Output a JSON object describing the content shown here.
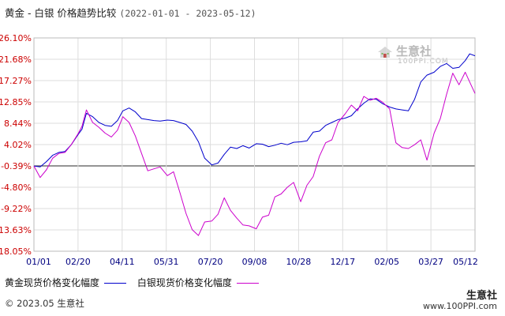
{
  "title": {
    "main": "黄金 - 白银 价格趋势比较",
    "range": "(2022-01-01 - 2023-05-12)"
  },
  "watermark": {
    "brand": "生意社",
    "url": "100PPI.COM"
  },
  "legend": {
    "gold": {
      "label": "黄金现货价格变化幅度",
      "color": "#0000cc"
    },
    "silver": {
      "label": "白银现货价格变化幅度",
      "color": "#cc00cc"
    }
  },
  "footer": {
    "copyright": "© 2023.05 生意社",
    "brand": "生意社",
    "url": "www.100PPI.com"
  },
  "colors": {
    "ytick": "#cc0000",
    "xtick": "#000080",
    "grid": "#dddddd",
    "zero": "#555555"
  },
  "chart_data": {
    "type": "line",
    "title": "黄金 - 白银 价格趋势比较 (2022-01-01 - 2023-05-12)",
    "xlabel": "",
    "ylabel": "",
    "x_ticks": [
      "01/01",
      "02/20",
      "04/11",
      "05/31",
      "07/20",
      "09/08",
      "10/28",
      "12/17",
      "02/05",
      "03/27",
      "05/12"
    ],
    "y_ticks": [
      "26.10%",
      "21.68%",
      "17.27%",
      "12.85%",
      "8.44%",
      "4.02%",
      "-0.39%",
      "-4.80%",
      "-9.22%",
      "-13.63%",
      "-18.05%"
    ],
    "y_tick_values": [
      26.1,
      21.68,
      17.27,
      12.85,
      8.44,
      4.02,
      -0.39,
      -4.8,
      -9.22,
      -13.63,
      -18.05
    ],
    "ylim": [
      -18.05,
      26.1
    ],
    "x_range": [
      "2022-01-01",
      "2023-05-12"
    ],
    "grid": true,
    "series": [
      {
        "name": "黄金现货价格变化幅度",
        "x": [
          "2022-01-01",
          "2022-01-08",
          "2022-01-15",
          "2022-01-22",
          "2022-01-29",
          "2022-02-05",
          "2022-02-12",
          "2022-02-20",
          "2022-02-24",
          "2022-03-01",
          "2022-03-08",
          "2022-03-15",
          "2022-03-22",
          "2022-03-29",
          "2022-04-05",
          "2022-04-11",
          "2022-04-18",
          "2022-04-25",
          "2022-05-02",
          "2022-05-09",
          "2022-05-16",
          "2022-05-23",
          "2022-05-31",
          "2022-06-07",
          "2022-06-14",
          "2022-06-21",
          "2022-06-28",
          "2022-07-05",
          "2022-07-12",
          "2022-07-20",
          "2022-07-27",
          "2022-08-03",
          "2022-08-10",
          "2022-08-17",
          "2022-08-24",
          "2022-08-31",
          "2022-09-08",
          "2022-09-15",
          "2022-09-22",
          "2022-09-29",
          "2022-10-06",
          "2022-10-13",
          "2022-10-20",
          "2022-10-28",
          "2022-11-04",
          "2022-11-11",
          "2022-11-18",
          "2022-11-25",
          "2022-12-02",
          "2022-12-09",
          "2022-12-17",
          "2022-12-24",
          "2022-12-31",
          "2023-01-07",
          "2023-01-14",
          "2023-01-21",
          "2023-01-28",
          "2023-02-05",
          "2023-02-12",
          "2023-02-19",
          "2023-02-26",
          "2023-03-05",
          "2023-03-12",
          "2023-03-19",
          "2023-03-27",
          "2023-04-03",
          "2023-04-10",
          "2023-04-17",
          "2023-04-24",
          "2023-05-01",
          "2023-05-06",
          "2023-05-12"
        ],
        "y": [
          -0.4,
          -0.6,
          0.5,
          1.8,
          2.4,
          2.6,
          4.0,
          6.2,
          7.2,
          10.5,
          9.8,
          8.6,
          8.0,
          7.8,
          9.0,
          11.0,
          11.6,
          10.8,
          9.4,
          9.2,
          9.0,
          8.9,
          9.1,
          9.0,
          8.6,
          8.2,
          6.8,
          4.6,
          1.2,
          -0.2,
          0.2,
          2.0,
          3.5,
          3.2,
          3.8,
          3.3,
          4.2,
          4.1,
          3.6,
          3.9,
          4.3,
          4.0,
          4.5,
          4.6,
          4.8,
          6.6,
          6.8,
          8.0,
          8.6,
          9.2,
          9.5,
          10.0,
          11.4,
          12.6,
          13.5,
          13.4,
          12.5,
          11.8,
          11.4,
          11.2,
          11.0,
          13.4,
          17.0,
          18.4,
          19.0,
          20.2,
          20.8,
          19.8,
          20.0,
          21.4,
          22.8,
          22.4
        ]
      },
      {
        "name": "白银现货价格变化幅度",
        "x": [
          "2022-01-01",
          "2022-01-08",
          "2022-01-15",
          "2022-01-22",
          "2022-01-29",
          "2022-02-05",
          "2022-02-12",
          "2022-02-20",
          "2022-02-24",
          "2022-03-01",
          "2022-03-08",
          "2022-03-15",
          "2022-03-22",
          "2022-03-29",
          "2022-04-05",
          "2022-04-11",
          "2022-04-18",
          "2022-04-25",
          "2022-05-02",
          "2022-05-09",
          "2022-05-16",
          "2022-05-23",
          "2022-05-31",
          "2022-06-07",
          "2022-06-14",
          "2022-06-21",
          "2022-06-28",
          "2022-07-05",
          "2022-07-12",
          "2022-07-20",
          "2022-07-27",
          "2022-08-03",
          "2022-08-10",
          "2022-08-17",
          "2022-08-24",
          "2022-08-31",
          "2022-09-08",
          "2022-09-15",
          "2022-09-22",
          "2022-09-29",
          "2022-10-06",
          "2022-10-13",
          "2022-10-20",
          "2022-10-28",
          "2022-11-04",
          "2022-11-11",
          "2022-11-18",
          "2022-11-25",
          "2022-12-02",
          "2022-12-09",
          "2022-12-17",
          "2022-12-24",
          "2022-12-31",
          "2023-01-07",
          "2023-01-14",
          "2023-01-21",
          "2023-01-28",
          "2023-02-05",
          "2023-02-12",
          "2023-02-19",
          "2023-02-26",
          "2023-03-05",
          "2023-03-12",
          "2023-03-19",
          "2023-03-27",
          "2023-04-03",
          "2023-04-10",
          "2023-04-17",
          "2023-04-24",
          "2023-05-01",
          "2023-05-06",
          "2023-05-12"
        ],
        "y": [
          -0.4,
          -2.8,
          -1.2,
          1.2,
          2.2,
          2.4,
          4.0,
          6.4,
          7.8,
          11.2,
          8.6,
          7.6,
          6.4,
          5.6,
          7.0,
          9.8,
          8.6,
          5.8,
          2.2,
          -1.4,
          -1.0,
          -0.6,
          -2.4,
          -1.6,
          -5.8,
          -10.2,
          -13.6,
          -14.8,
          -12.0,
          -11.8,
          -10.4,
          -7.0,
          -9.6,
          -11.2,
          -12.6,
          -12.8,
          -13.4,
          -11.0,
          -10.6,
          -6.8,
          -6.2,
          -4.8,
          -3.8,
          -7.8,
          -4.4,
          -2.6,
          1.6,
          4.4,
          5.0,
          8.6,
          10.4,
          12.2,
          11.0,
          14.0,
          13.2,
          13.6,
          12.8,
          11.4,
          4.4,
          3.4,
          3.2,
          4.0,
          5.0,
          0.8,
          6.4,
          9.4,
          14.4,
          18.8,
          16.4,
          19.0,
          17.0,
          14.6
        ]
      }
    ]
  }
}
